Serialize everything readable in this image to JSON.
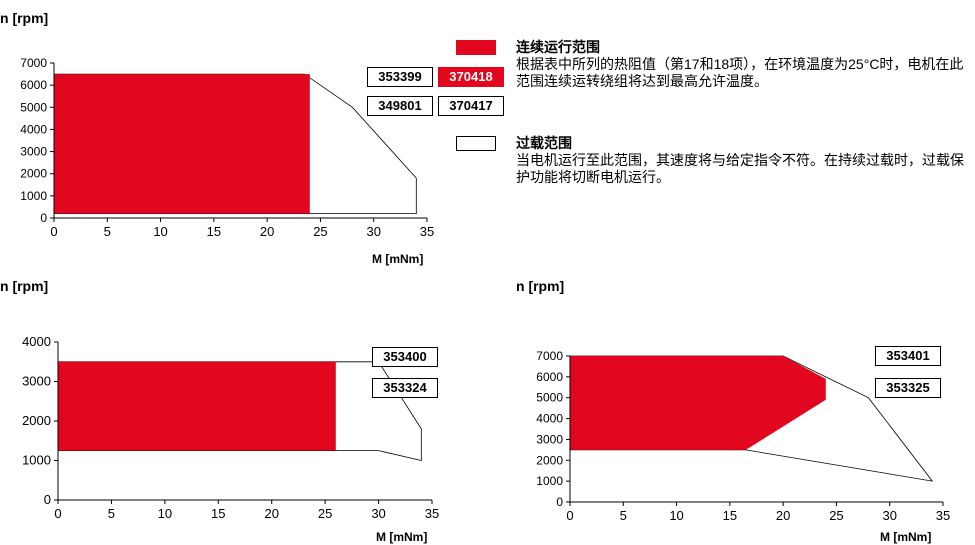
{
  "colors": {
    "continuous": "#e2061f",
    "overload_fill": "#ffffff",
    "outline": "#000000"
  },
  "chart_data": [
    {
      "type": "area",
      "ylabel": "n [rpm]",
      "xlabel": "M [mNm]",
      "xlim": [
        0,
        35
      ],
      "ylim": [
        0,
        7000
      ],
      "xticks": [
        "0",
        "5",
        "10",
        "15",
        "20",
        "25",
        "30",
        "35"
      ],
      "yticks": [
        "0",
        "1000",
        "2000",
        "3000",
        "4000",
        "5000",
        "6000",
        "7000"
      ],
      "series": [
        {
          "name": "连续运行范围",
          "polygon": [
            [
              0,
              200
            ],
            [
              24,
              200
            ],
            [
              24,
              6500
            ],
            [
              0,
              6500
            ]
          ]
        },
        {
          "name": "过载范围",
          "polygon": [
            [
              0,
              200
            ],
            [
              34,
              200
            ],
            [
              34,
              1800
            ],
            [
              28,
              5000
            ],
            [
              23.5,
              6500
            ],
            [
              0,
              6500
            ]
          ]
        }
      ],
      "part_numbers": [
        "353399",
        "370418",
        "349801",
        "370417"
      ]
    },
    {
      "type": "area",
      "ylabel": "n [rpm]",
      "xlabel": "M [mNm]",
      "xlim": [
        0,
        35
      ],
      "ylim": [
        0,
        4000
      ],
      "xticks": [
        "0",
        "5",
        "10",
        "15",
        "20",
        "25",
        "30",
        "35"
      ],
      "yticks": [
        "0",
        "1000",
        "2000",
        "3000",
        "4000"
      ],
      "series": [
        {
          "name": "连续运行范围",
          "polygon": [
            [
              0,
              1250
            ],
            [
              26,
              1250
            ],
            [
              26,
              3500
            ],
            [
              0,
              3500
            ]
          ]
        },
        {
          "name": "过载范围",
          "polygon": [
            [
              0,
              1250
            ],
            [
              30,
              1250
            ],
            [
              34,
              1000
            ],
            [
              34,
              1800
            ],
            [
              30,
              3500
            ],
            [
              0,
              3500
            ]
          ]
        }
      ],
      "part_numbers": [
        "353400",
        "353324"
      ]
    },
    {
      "type": "area",
      "ylabel": "n [rpm]",
      "xlabel": "M [mNm]",
      "xlim": [
        0,
        35
      ],
      "ylim": [
        0,
        7000
      ],
      "xticks": [
        "0",
        "5",
        "10",
        "15",
        "20",
        "25",
        "30",
        "35"
      ],
      "yticks": [
        "0",
        "1000",
        "2000",
        "3000",
        "4000",
        "5000",
        "6000",
        "7000"
      ],
      "series": [
        {
          "name": "连续运行范围",
          "polygon": [
            [
              0,
              2500
            ],
            [
              16.5,
              2500
            ],
            [
              24,
              4900
            ],
            [
              24,
              5900
            ],
            [
              20,
              7000
            ],
            [
              0,
              7000
            ]
          ]
        },
        {
          "name": "过载范围",
          "polygon": [
            [
              0,
              2500
            ],
            [
              16.5,
              2500
            ],
            [
              34,
              1000
            ],
            [
              28,
              5000
            ],
            [
              20,
              7000
            ],
            [
              0,
              7000
            ]
          ]
        }
      ],
      "part_numbers": [
        "353401",
        "353325"
      ]
    }
  ],
  "legend": {
    "continuous_title": "连续运行范围",
    "continuous_desc": "根据表中所列的热阻值（第17和18项），在环境温度为25°C时，电机在此范围连续运转绕组将达到最高允许温度。",
    "overload_title": "过载范围",
    "overload_desc": "当电机运行至此范围，其速度将与给定指令不符。在持续过载时，过载保护功能将切断电机运行。"
  }
}
